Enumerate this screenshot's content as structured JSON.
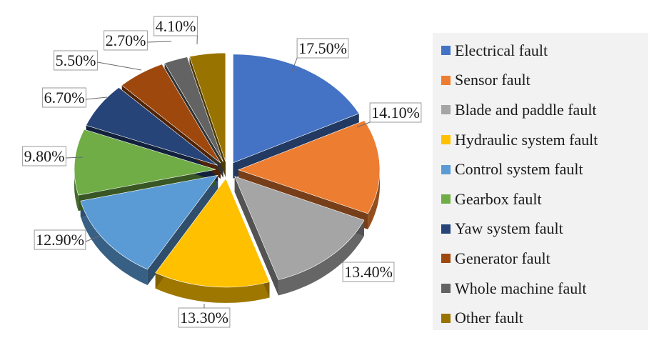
{
  "chart_data": {
    "type": "pie",
    "style": "3d-exploded",
    "legend_position": "right",
    "slices": [
      {
        "label": "Electrical fault",
        "value": 17.5,
        "value_label": "17.50%",
        "color": "#4472c4"
      },
      {
        "label": "Sensor fault",
        "value": 14.1,
        "value_label": "14.10%",
        "color": "#ed7d31"
      },
      {
        "label": "Blade and paddle fault",
        "value": 13.4,
        "value_label": "13.40%",
        "color": "#a5a5a5"
      },
      {
        "label": "Hydraulic system fault",
        "value": 13.3,
        "value_label": "13.30%",
        "color": "#ffc000"
      },
      {
        "label": "Control system fault",
        "value": 12.9,
        "value_label": "12.90%",
        "color": "#5b9bd5"
      },
      {
        "label": "Gearbox fault",
        "value": 9.8,
        "value_label": "9.80%",
        "color": "#70ad47"
      },
      {
        "label": "Yaw system fault",
        "value": 6.7,
        "value_label": "6.70%",
        "color": "#264478"
      },
      {
        "label": "Generator fault",
        "value": 5.5,
        "value_label": "5.50%",
        "color": "#9e480e"
      },
      {
        "label": "Whole machine fault",
        "value": 2.7,
        "value_label": "2.70%",
        "color": "#636363"
      },
      {
        "label": "Other fault",
        "value": 4.1,
        "value_label": "4.10%",
        "color": "#997300"
      }
    ]
  }
}
